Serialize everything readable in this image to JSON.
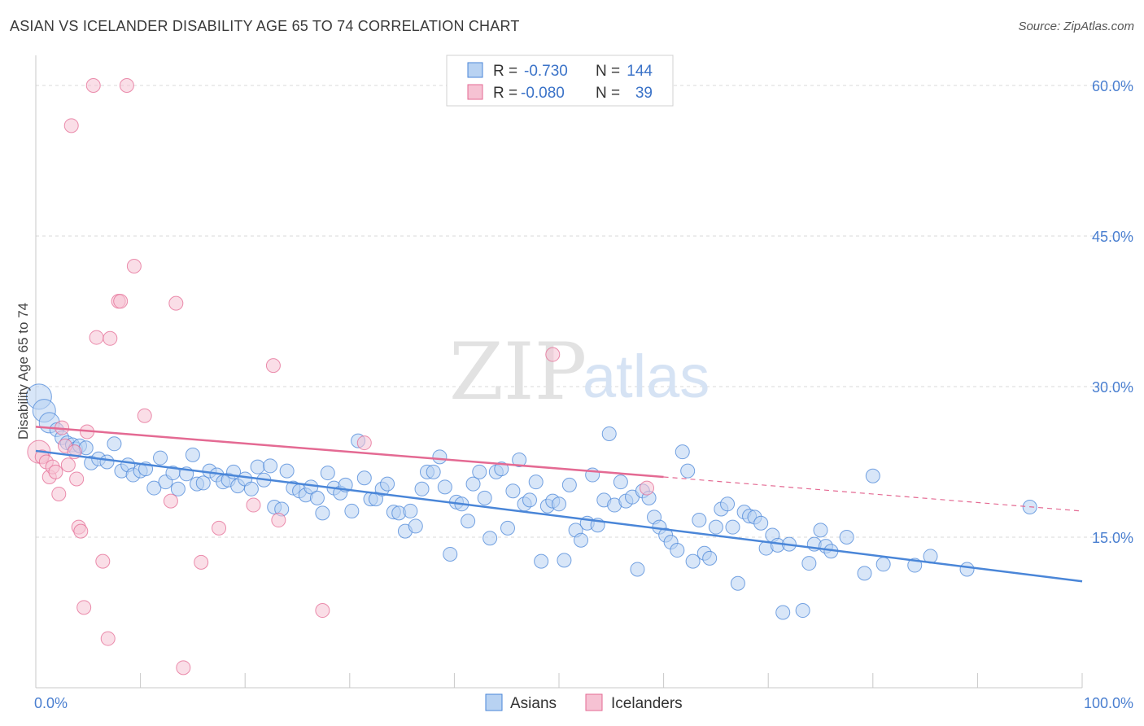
{
  "title": "ASIAN VS ICELANDER DISABILITY AGE 65 TO 74 CORRELATION CHART",
  "source": "Source: ZipAtlas.com",
  "watermark": {
    "zip": "ZIP",
    "atlas": "atlas"
  },
  "legend": {
    "rows": [
      {
        "r_label": "R =",
        "r_value": "-0.730",
        "n_label": "N =",
        "n_value": "144"
      },
      {
        "r_label": "R =",
        "r_value": "-0.080",
        "n_label": "N =",
        "n_value": "39"
      }
    ]
  },
  "colors": {
    "asians": "#4a86d8",
    "asians_fill": "#b8d2f2",
    "icelanders": "#e46a93",
    "icelanders_fill": "#f6c2d3",
    "grid": "#d8d8d8",
    "tick_text": "#4a7fd0"
  },
  "chart_data": {
    "type": "scatter",
    "title": "ASIAN VS ICELANDER DISABILITY AGE 65 TO 74 CORRELATION CHART",
    "xlabel": "",
    "ylabel": "Disability Age 65 to 74",
    "xlim": [
      0,
      100
    ],
    "ylim": [
      0,
      63
    ],
    "x_tick_labels": [
      "0.0%",
      "100.0%"
    ],
    "y_ticks": [
      15,
      30,
      45,
      60
    ],
    "y_tick_labels": [
      "15.0%",
      "30.0%",
      "45.0%",
      "60.0%"
    ],
    "grid": true,
    "legend_position": "top-center",
    "series": [
      {
        "name": "Asians",
        "r": -0.73,
        "n": 144,
        "trend": {
          "x": [
            0,
            100
          ],
          "y": [
            23.6,
            10.6
          ]
        },
        "points": [
          [
            0.3,
            29.0
          ],
          [
            0.8,
            27.6
          ],
          [
            1.3,
            26.4
          ],
          [
            2.0,
            25.7
          ],
          [
            2.5,
            24.9
          ],
          [
            3.0,
            24.4
          ],
          [
            3.5,
            24.2
          ],
          [
            3.8,
            23.8
          ],
          [
            4.2,
            24.1
          ],
          [
            4.8,
            23.9
          ],
          [
            5.3,
            22.4
          ],
          [
            6.0,
            22.8
          ],
          [
            6.8,
            22.5
          ],
          [
            7.5,
            24.3
          ],
          [
            8.2,
            21.6
          ],
          [
            8.8,
            22.2
          ],
          [
            9.3,
            21.2
          ],
          [
            10.0,
            21.6
          ],
          [
            10.5,
            21.8
          ],
          [
            11.3,
            19.9
          ],
          [
            11.9,
            22.9
          ],
          [
            12.4,
            20.5
          ],
          [
            13.1,
            21.4
          ],
          [
            13.6,
            19.8
          ],
          [
            14.4,
            21.3
          ],
          [
            15.0,
            23.2
          ],
          [
            15.4,
            20.3
          ],
          [
            16.0,
            20.4
          ],
          [
            16.6,
            21.6
          ],
          [
            17.3,
            21.2
          ],
          [
            17.9,
            20.5
          ],
          [
            18.4,
            20.7
          ],
          [
            18.9,
            21.5
          ],
          [
            19.3,
            20.1
          ],
          [
            20.0,
            20.8
          ],
          [
            20.6,
            19.8
          ],
          [
            21.2,
            22.0
          ],
          [
            21.8,
            20.7
          ],
          [
            22.4,
            22.1
          ],
          [
            22.8,
            18.0
          ],
          [
            23.5,
            17.8
          ],
          [
            24.0,
            21.6
          ],
          [
            24.6,
            19.9
          ],
          [
            25.2,
            19.6
          ],
          [
            25.8,
            19.2
          ],
          [
            26.3,
            20.0
          ],
          [
            26.9,
            18.9
          ],
          [
            27.4,
            17.4
          ],
          [
            27.9,
            21.4
          ],
          [
            28.5,
            19.9
          ],
          [
            29.1,
            19.4
          ],
          [
            29.6,
            20.2
          ],
          [
            30.2,
            17.6
          ],
          [
            30.8,
            24.6
          ],
          [
            31.4,
            20.9
          ],
          [
            32.0,
            18.8
          ],
          [
            32.5,
            18.8
          ],
          [
            33.1,
            19.8
          ],
          [
            33.6,
            20.3
          ],
          [
            34.2,
            17.5
          ],
          [
            34.7,
            17.4
          ],
          [
            35.3,
            15.6
          ],
          [
            35.8,
            17.6
          ],
          [
            36.3,
            16.1
          ],
          [
            36.9,
            19.8
          ],
          [
            37.4,
            21.5
          ],
          [
            38.0,
            21.5
          ],
          [
            38.6,
            23.0
          ],
          [
            39.1,
            20.0
          ],
          [
            39.6,
            13.3
          ],
          [
            40.2,
            18.5
          ],
          [
            40.7,
            18.3
          ],
          [
            41.3,
            16.6
          ],
          [
            41.8,
            20.3
          ],
          [
            42.4,
            21.5
          ],
          [
            42.9,
            18.9
          ],
          [
            43.4,
            14.9
          ],
          [
            44.0,
            21.5
          ],
          [
            44.5,
            21.8
          ],
          [
            45.1,
            15.9
          ],
          [
            45.6,
            19.6
          ],
          [
            46.2,
            22.7
          ],
          [
            46.7,
            18.3
          ],
          [
            47.2,
            18.7
          ],
          [
            47.8,
            20.5
          ],
          [
            48.3,
            12.6
          ],
          [
            48.9,
            18.1
          ],
          [
            49.4,
            18.6
          ],
          [
            50.0,
            18.3
          ],
          [
            50.5,
            12.7
          ],
          [
            51.0,
            20.2
          ],
          [
            51.6,
            15.7
          ],
          [
            52.1,
            14.7
          ],
          [
            52.7,
            16.4
          ],
          [
            53.2,
            21.2
          ],
          [
            53.7,
            16.2
          ],
          [
            54.3,
            18.7
          ],
          [
            54.8,
            25.3
          ],
          [
            55.3,
            18.2
          ],
          [
            55.9,
            20.5
          ],
          [
            56.4,
            18.6
          ],
          [
            57.0,
            19.0
          ],
          [
            57.5,
            11.8
          ],
          [
            58.0,
            19.6
          ],
          [
            58.6,
            18.9
          ],
          [
            59.1,
            17.0
          ],
          [
            59.6,
            16.0
          ],
          [
            60.2,
            15.2
          ],
          [
            60.7,
            14.5
          ],
          [
            61.3,
            13.7
          ],
          [
            61.8,
            23.5
          ],
          [
            62.3,
            21.6
          ],
          [
            62.8,
            12.6
          ],
          [
            63.4,
            16.7
          ],
          [
            63.9,
            13.4
          ],
          [
            64.4,
            12.9
          ],
          [
            65.0,
            16.0
          ],
          [
            65.5,
            17.8
          ],
          [
            66.1,
            18.3
          ],
          [
            66.6,
            16.0
          ],
          [
            67.1,
            10.4
          ],
          [
            67.7,
            17.5
          ],
          [
            68.2,
            17.1
          ],
          [
            68.7,
            17.0
          ],
          [
            69.3,
            16.4
          ],
          [
            69.8,
            13.9
          ],
          [
            70.4,
            15.2
          ],
          [
            70.9,
            14.2
          ],
          [
            71.4,
            7.5
          ],
          [
            72.0,
            14.3
          ],
          [
            73.3,
            7.7
          ],
          [
            73.9,
            12.4
          ],
          [
            74.4,
            14.3
          ],
          [
            75.0,
            15.7
          ],
          [
            75.5,
            14.1
          ],
          [
            76.0,
            13.6
          ],
          [
            77.5,
            15.0
          ],
          [
            79.2,
            11.4
          ],
          [
            80.0,
            21.1
          ],
          [
            81.0,
            12.3
          ],
          [
            84.0,
            12.2
          ],
          [
            85.5,
            13.1
          ],
          [
            89.0,
            11.8
          ],
          [
            95.0,
            18.0
          ]
        ]
      },
      {
        "name": "Icelanders",
        "r": -0.08,
        "n": 39,
        "trend": {
          "x": [
            0,
            60
          ],
          "y": [
            26.0,
            21.0
          ]
        },
        "trend_extension": {
          "x": [
            60,
            100
          ],
          "y": [
            21.0,
            17.6
          ]
        },
        "points": [
          [
            0.3,
            23.5
          ],
          [
            0.6,
            23.0
          ],
          [
            1.0,
            22.5
          ],
          [
            1.3,
            21.0
          ],
          [
            1.6,
            22.0
          ],
          [
            1.9,
            21.5
          ],
          [
            2.2,
            19.3
          ],
          [
            2.5,
            25.9
          ],
          [
            2.8,
            24.1
          ],
          [
            3.1,
            22.2
          ],
          [
            3.4,
            56.0
          ],
          [
            3.7,
            23.5
          ],
          [
            3.9,
            20.8
          ],
          [
            4.1,
            16.0
          ],
          [
            4.3,
            15.6
          ],
          [
            4.6,
            8.0
          ],
          [
            4.9,
            25.5
          ],
          [
            5.5,
            60.0
          ],
          [
            5.8,
            34.9
          ],
          [
            6.4,
            12.6
          ],
          [
            6.9,
            4.9
          ],
          [
            7.1,
            34.8
          ],
          [
            7.9,
            38.5
          ],
          [
            8.1,
            38.5
          ],
          [
            8.7,
            60.0
          ],
          [
            9.4,
            42.0
          ],
          [
            10.4,
            27.1
          ],
          [
            12.9,
            18.6
          ],
          [
            13.4,
            38.3
          ],
          [
            14.1,
            2.0
          ],
          [
            15.8,
            12.5
          ],
          [
            17.5,
            15.9
          ],
          [
            20.8,
            18.2
          ],
          [
            22.7,
            32.1
          ],
          [
            23.2,
            16.7
          ],
          [
            27.4,
            7.7
          ],
          [
            31.4,
            24.4
          ],
          [
            49.4,
            33.2
          ],
          [
            58.4,
            19.9
          ]
        ]
      }
    ]
  }
}
